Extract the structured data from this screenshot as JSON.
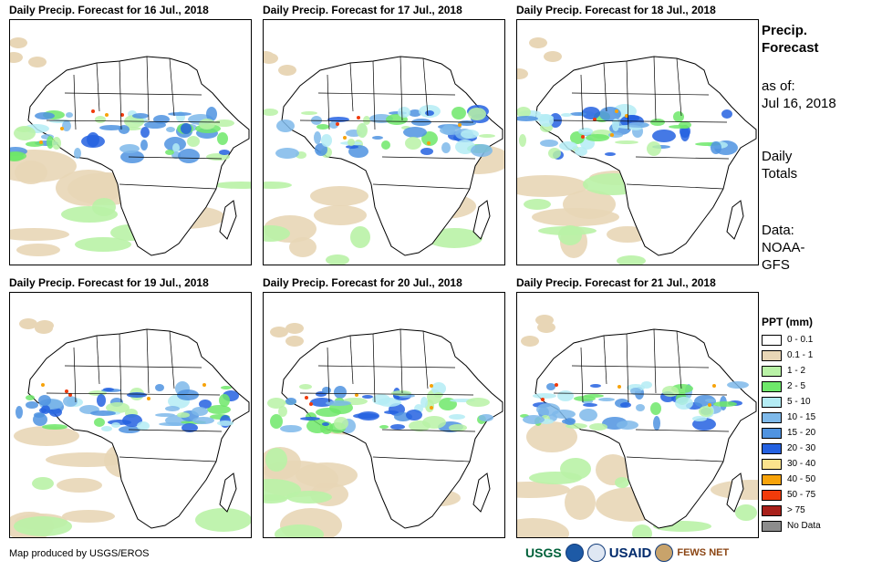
{
  "panels": [
    {
      "title": "Daily Precip. Forecast for 16 Jul., 2018"
    },
    {
      "title": "Daily Precip. Forecast for 17 Jul., 2018"
    },
    {
      "title": "Daily Precip. Forecast for 18 Jul., 2018"
    },
    {
      "title": "Daily Precip. Forecast for 19 Jul., 2018"
    },
    {
      "title": "Daily Precip. Forecast for 20 Jul., 2018"
    },
    {
      "title": "Daily Precip. Forecast for 21 Jul., 2018"
    }
  ],
  "side": {
    "heading_line1": "Precip.",
    "heading_line2": "Forecast",
    "asof_line1": "as of:",
    "asof_line2": "Jul 16, 2018",
    "totals_line1": "Daily",
    "totals_line2": "Totals",
    "data_line1": "Data:",
    "data_line2": "NOAA-",
    "data_line3": "GFS"
  },
  "legend": {
    "title": "PPT (mm)",
    "items": [
      {
        "label": "0 - 0.1",
        "color": "#ffffff"
      },
      {
        "label": "0.1 - 1",
        "color": "#e8d6b6"
      },
      {
        "label": "1 - 2",
        "color": "#b9f2a6"
      },
      {
        "label": "2 - 5",
        "color": "#6ee86a"
      },
      {
        "label": "5 - 10",
        "color": "#b4ecf4"
      },
      {
        "label": "10 - 15",
        "color": "#7eb9ea"
      },
      {
        "label": "15 - 20",
        "color": "#4f93e0"
      },
      {
        "label": "20 - 30",
        "color": "#2461e0"
      },
      {
        "label": "30 - 40",
        "color": "#fbe38d"
      },
      {
        "label": "40 - 50",
        "color": "#f7a30a"
      },
      {
        "label": "50 - 75",
        "color": "#f13b0b"
      },
      {
        "label": "> 75",
        "color": "#a8201a"
      },
      {
        "label": "No Data",
        "color": "#8c8c8c"
      }
    ]
  },
  "credit": "Map produced by USGS/EROS",
  "logos": {
    "usgs": "USGS",
    "usaid": "USAID",
    "fews": "FEWS NET"
  }
}
